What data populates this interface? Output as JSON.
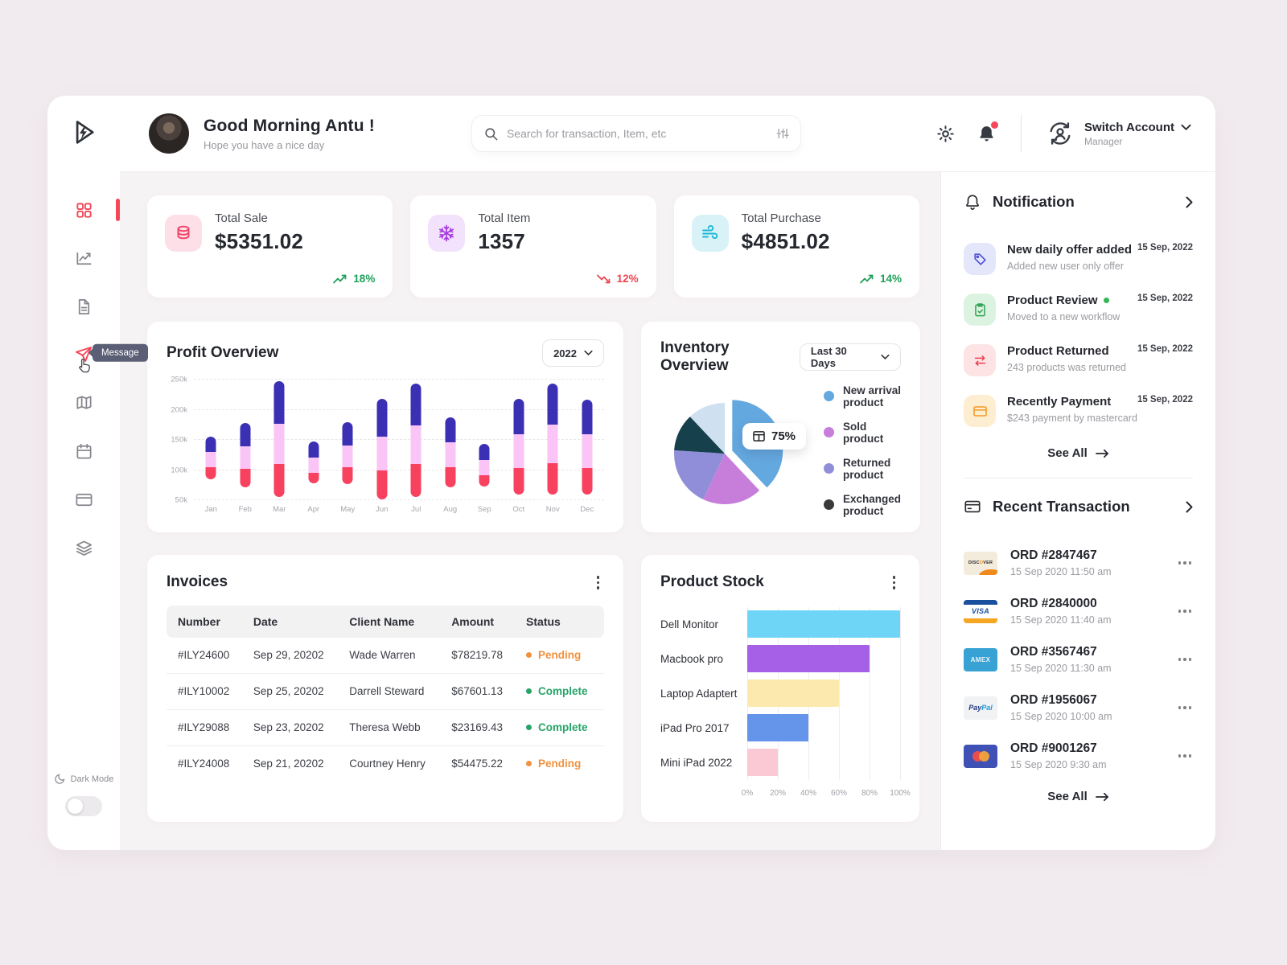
{
  "colors": {
    "accent_red": "#F4485A",
    "green": "#1FA05C",
    "red_down": "#EF4451",
    "pending": "#F0923F",
    "complete": "#27A468",
    "page_bg": "#F1EBEF",
    "content_bg": "#F6F3F5"
  },
  "sidebar": {
    "tooltip": "Message",
    "items": [
      "dashboard",
      "analytics",
      "documents",
      "message",
      "map",
      "calendar",
      "payments",
      "layers"
    ],
    "dark_mode_label": "Dark Mode"
  },
  "header": {
    "greeting": "Good Morning Antu !",
    "subtitle": "Hope you have a nice day",
    "search_placeholder": "Search for transaction, Item, etc",
    "account": {
      "label": "Switch Account",
      "role": "Manager"
    }
  },
  "stats": [
    {
      "label": "Total Sale",
      "value": "$5351.02",
      "trend": "18%",
      "direction": "up"
    },
    {
      "label": "Total Item",
      "value": "1357",
      "trend": "12%",
      "direction": "down"
    },
    {
      "label": "Total Purchase",
      "value": "$4851.02",
      "trend": "14%",
      "direction": "up"
    }
  ],
  "profit": {
    "title": "Profit Overview",
    "year": "2022"
  },
  "inventory": {
    "title": "Inventory Overview",
    "range": "Last 30 Days",
    "badge": "75%"
  },
  "invoices": {
    "title": "Invoices",
    "columns": [
      "Number",
      "Date",
      "Client Name",
      "Amount",
      "Status"
    ],
    "rows": [
      {
        "number": "#ILY24600",
        "date": "Sep 29, 20202",
        "client": "Wade Warren",
        "amount": "$78219.78",
        "status": "Pending",
        "status_key": "pending"
      },
      {
        "number": "#ILY10002",
        "date": "Sep 25, 20202",
        "client": "Darrell Steward",
        "amount": "$67601.13",
        "status": "Complete",
        "status_key": "complete"
      },
      {
        "number": "#ILY29088",
        "date": "Sep 23, 20202",
        "client": "Theresa Webb",
        "amount": "$23169.43",
        "status": "Complete",
        "status_key": "complete"
      },
      {
        "number": "#ILY24008",
        "date": "Sep 21, 20202",
        "client": "Courtney Henry",
        "amount": "$54475.22",
        "status": "Pending",
        "status_key": "pending"
      }
    ]
  },
  "product_stock": {
    "title": "Product Stock"
  },
  "notifications": {
    "title": "Notification",
    "items": [
      {
        "icon": "tag",
        "title": "New daily offer added",
        "sub": "Added new user only offer",
        "date": "15 Sep, 2022",
        "unread": false
      },
      {
        "icon": "clipboard",
        "title": "Product Review",
        "sub": "Moved to a new workflow",
        "date": "15 Sep, 2022",
        "unread": true
      },
      {
        "icon": "swap",
        "title": "Product Returned",
        "sub": "243 products was returned",
        "date": "15 Sep, 2022",
        "unread": false
      },
      {
        "icon": "card",
        "title": "Recently Payment",
        "sub": "$243 payment by mastercard",
        "date": "15 Sep, 2022",
        "unread": false
      }
    ],
    "see_all": "See All"
  },
  "transactions": {
    "title": "Recent Transaction",
    "items": [
      {
        "brand": "Discover",
        "order": "ORD #2847467",
        "time": "15 Sep 2020 11:50 am"
      },
      {
        "brand": "Visa",
        "order": "ORD #2840000",
        "time": "15 Sep 2020 11:40 am"
      },
      {
        "brand": "Amex",
        "order": "ORD #3567467",
        "time": "15 Sep 2020 11:30 am"
      },
      {
        "brand": "PayPal",
        "order": "ORD #1956067",
        "time": "15 Sep 2020 10:00 am"
      },
      {
        "brand": "Mastercard",
        "order": "ORD #9001267",
        "time": "15 Sep 2020 9:30 am"
      }
    ],
    "see_all": "See All"
  },
  "chart_data": [
    {
      "type": "bar",
      "variant": "stacked-floating-column",
      "title": "Profit Overview",
      "categories": [
        "Jan",
        "Feb",
        "Mar",
        "Apr",
        "May",
        "Jun",
        "Jul",
        "Aug",
        "Sep",
        "Oct",
        "Nov",
        "Dec"
      ],
      "unit": "thousands",
      "ylim": [
        50,
        250
      ],
      "yticks": [
        "50k",
        "100k",
        "150k",
        "200k",
        "250k"
      ],
      "grid": "dashed-horizontal",
      "series": [
        {
          "name": "segment-low",
          "color": "#F8415E",
          "ranges": [
            [
              85,
              105
            ],
            [
              72,
              102
            ],
            [
              55,
              110
            ],
            [
              78,
              96
            ],
            [
              77,
              105
            ],
            [
              51,
              99
            ],
            [
              56,
              110
            ],
            [
              71,
              104
            ],
            [
              73,
              92
            ],
            [
              59,
              103
            ],
            [
              60,
              111
            ],
            [
              59,
              104
            ]
          ]
        },
        {
          "name": "segment-mid",
          "color": "#FAC4F6",
          "ranges": [
            [
              105,
              130
            ],
            [
              102,
              140
            ],
            [
              110,
              177
            ],
            [
              96,
              121
            ],
            [
              105,
              141
            ],
            [
              99,
              156
            ],
            [
              110,
              174
            ],
            [
              104,
              146
            ],
            [
              92,
              117
            ],
            [
              103,
              160
            ],
            [
              111,
              176
            ],
            [
              104,
              159
            ]
          ]
        },
        {
          "name": "segment-high",
          "color": "#3B30B4",
          "ranges": [
            [
              130,
              155
            ],
            [
              140,
              178
            ],
            [
              177,
              248
            ],
            [
              121,
              147
            ],
            [
              141,
              179
            ],
            [
              156,
              218
            ],
            [
              174,
              244
            ],
            [
              146,
              187
            ],
            [
              117,
              143
            ],
            [
              160,
              218
            ],
            [
              176,
              243
            ],
            [
              159,
              217
            ]
          ]
        }
      ]
    },
    {
      "type": "pie",
      "title": "Inventory Overview",
      "badge": "75%",
      "slices": [
        {
          "label": "New arrival product",
          "value": 38,
          "color": "#64A8E0",
          "exploded": true
        },
        {
          "label": "Sold product",
          "value": 19,
          "color": "#C77EDB"
        },
        {
          "label": "Returned product",
          "value": 19,
          "color": "#908ED8"
        },
        {
          "label": "Exchanged product",
          "value": 12,
          "color": "#16404C"
        },
        {
          "label": "",
          "value": 12,
          "color": "#CFE0F0"
        }
      ],
      "legend": [
        {
          "label": "New arrival product",
          "color": "#64A8E0"
        },
        {
          "label": "Sold product",
          "color": "#C77EDB"
        },
        {
          "label": "Returned product",
          "color": "#908ED8"
        },
        {
          "label": "Exchanged product",
          "color": "#3A3A3A"
        }
      ],
      "legend_position": "right"
    },
    {
      "type": "bar",
      "orientation": "horizontal",
      "title": "Product Stock",
      "categories": [
        "Dell Monitor",
        "Macbook pro",
        "Laptop Adaptert",
        "iPad Pro 2017",
        "Mini iPad 2022"
      ],
      "values": [
        100,
        80,
        60,
        40,
        20
      ],
      "colors": [
        "#6FD5F6",
        "#A660E8",
        "#FBE9AE",
        "#6495EA",
        "#FBC9D4"
      ],
      "xlim": [
        0,
        100
      ],
      "xticks": [
        "0%",
        "20%",
        "40%",
        "60%",
        "80%",
        "100%"
      ],
      "grid": "vertical"
    }
  ]
}
